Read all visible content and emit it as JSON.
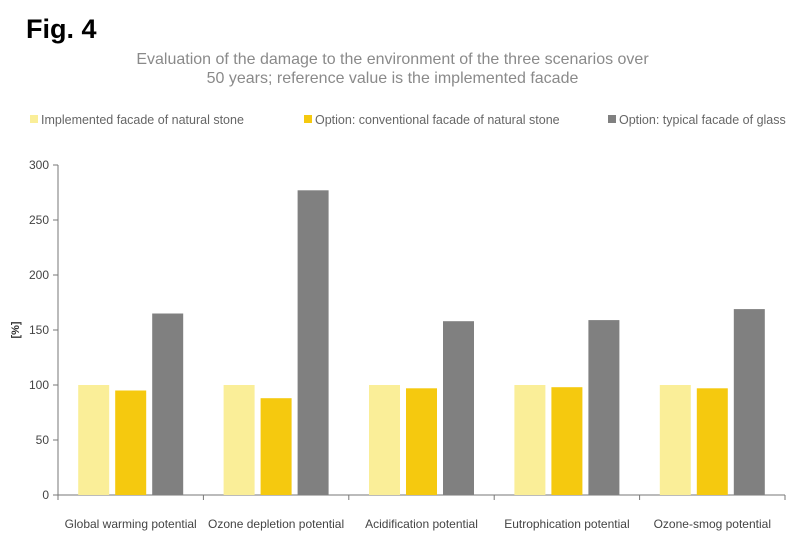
{
  "figure_label": "Fig. 4",
  "chart_data": {
    "type": "bar",
    "title_lines": [
      "Evaluation of the damage to the environment of the three scenarios over",
      "50 years; reference value is the implemented facade"
    ],
    "ylabel": "[%]",
    "xlabel": "",
    "ylim": [
      0,
      300
    ],
    "yticks": [
      "0",
      "50",
      "100",
      "150",
      "200",
      "250",
      "300"
    ],
    "grid": false,
    "legend_position": "top",
    "categories": [
      "Global warming potential",
      "Ozone depletion potential",
      "Acidification potential",
      "Eutrophication potential",
      "Ozone-smog potential"
    ],
    "series": [
      {
        "name": "Implemented facade of natural stone",
        "color": "#faee98",
        "values": [
          100,
          100,
          100,
          100,
          100
        ]
      },
      {
        "name": "Option: conventional facade of natural stone",
        "color": "#f5c90f",
        "values": [
          95,
          88,
          97,
          98,
          97
        ]
      },
      {
        "name": "Option: typical facade of glass",
        "color": "#808080",
        "values": [
          165,
          277,
          158,
          159,
          169
        ]
      }
    ]
  }
}
